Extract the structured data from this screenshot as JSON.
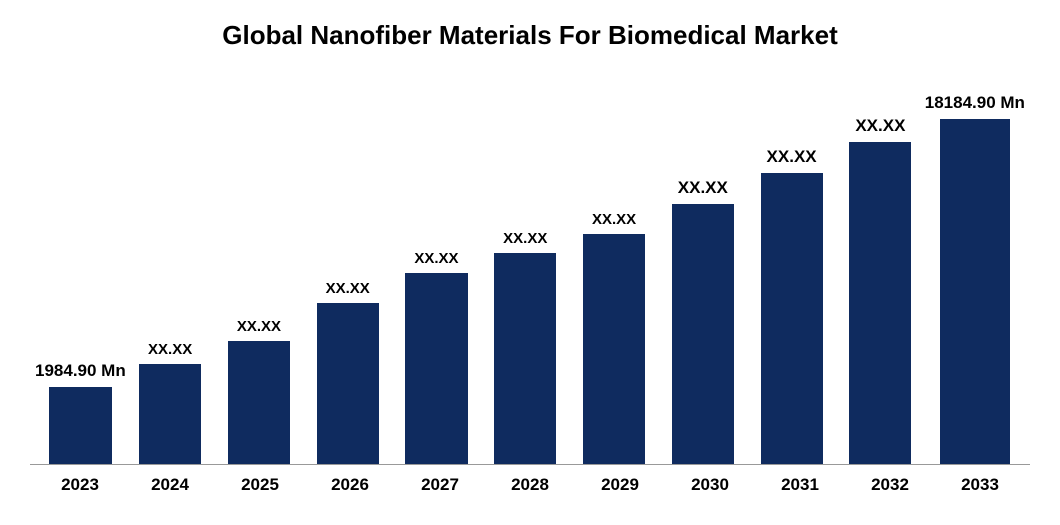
{
  "chart": {
    "type": "bar",
    "title": "Global Nanofiber Materials For Biomedical Market",
    "title_fontsize": 26,
    "title_color": "#000000",
    "background_color": "#ffffff",
    "bar_color": "#0f2b5f",
    "bar_width_pct": 70,
    "axis_line_color": "#999999",
    "label_font_weight": "bold",
    "label_color": "#000000",
    "x_label_fontsize": 17,
    "max_value": 100,
    "bars": [
      {
        "year": "2023",
        "label": "1984.90 Mn",
        "label_fontsize": 17,
        "height_pct": 20
      },
      {
        "year": "2024",
        "label": "XX.XX",
        "label_fontsize": 15,
        "height_pct": 26
      },
      {
        "year": "2025",
        "label": "XX.XX",
        "label_fontsize": 15,
        "height_pct": 32
      },
      {
        "year": "2026",
        "label": "XX.XX",
        "label_fontsize": 15,
        "height_pct": 42
      },
      {
        "year": "2027",
        "label": "XX.XX",
        "label_fontsize": 15,
        "height_pct": 50
      },
      {
        "year": "2028",
        "label": "XX.XX",
        "label_fontsize": 15,
        "height_pct": 55
      },
      {
        "year": "2029",
        "label": "XX.XX",
        "label_fontsize": 15,
        "height_pct": 60
      },
      {
        "year": "2030",
        "label": "XX.XX",
        "label_fontsize": 17,
        "height_pct": 68
      },
      {
        "year": "2031",
        "label": "XX.XX",
        "label_fontsize": 17,
        "height_pct": 76
      },
      {
        "year": "2032",
        "label": "XX.XX",
        "label_fontsize": 17,
        "height_pct": 84
      },
      {
        "year": "2033",
        "label": "18184.90 Mn",
        "label_fontsize": 17,
        "height_pct": 90
      }
    ]
  }
}
